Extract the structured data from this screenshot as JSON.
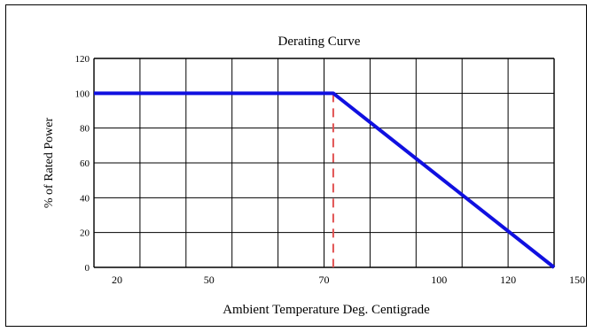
{
  "chart_data": {
    "type": "line",
    "title": "Derating Curve",
    "xlabel": "Ambient Temperature Deg. Centigrade",
    "ylabel": "% of Rated Power",
    "xticks": [
      {
        "label": "20",
        "col": 0
      },
      {
        "label": "50",
        "col": 1
      },
      {
        "label": "70",
        "col": 2
      },
      {
        "label": "100",
        "col": 3
      },
      {
        "label": "120",
        "col": 4
      },
      {
        "label": "150",
        "col": 5
      }
    ],
    "x_grid_columns": 10,
    "yticks": [
      "0",
      "20",
      "40",
      "60",
      "80",
      "100",
      "120"
    ],
    "ylim": [
      0,
      120
    ],
    "grid": true,
    "series": [
      {
        "color": "#1010e0",
        "points": [
          {
            "col": 0,
            "y": 100
          },
          {
            "col": 5.2,
            "y": 100
          },
          {
            "col": 10,
            "y": 0
          }
        ]
      }
    ],
    "marker_line": {
      "col": 5.2,
      "y_from": 0,
      "y_to": 100,
      "color": "#e05050",
      "style": "dashed"
    }
  }
}
